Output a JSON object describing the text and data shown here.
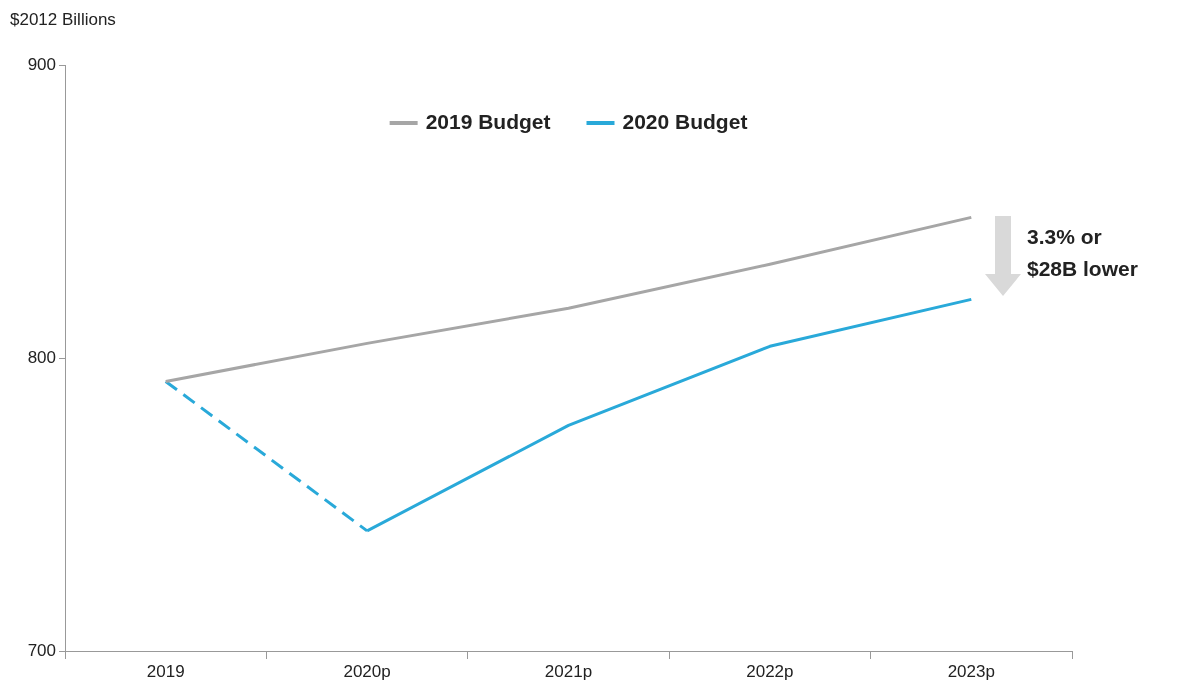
{
  "chart_data": {
    "type": "line",
    "ylabel": "$2012 Billions",
    "categories": [
      "2019",
      "2020p",
      "2021p",
      "2022p",
      "2023p"
    ],
    "series": [
      {
        "name": "2019 Budget",
        "color": "#a6a6a6",
        "values": [
          792,
          805,
          817,
          832,
          848
        ]
      },
      {
        "name": "2020 Budget",
        "color": "#29a9d9",
        "values": [
          null,
          741,
          777,
          804,
          820
        ]
      },
      {
        "color": "#29a9d9",
        "line_style": "dashed",
        "values": [
          792,
          741,
          null,
          null,
          null
        ]
      }
    ],
    "ylim": [
      700,
      900
    ],
    "yticks": [
      700,
      800,
      900
    ],
    "grid": false,
    "legend": "top",
    "marker": "none",
    "line_style": "solid",
    "annotations": [
      "3.3% or\n$28B lower"
    ]
  }
}
